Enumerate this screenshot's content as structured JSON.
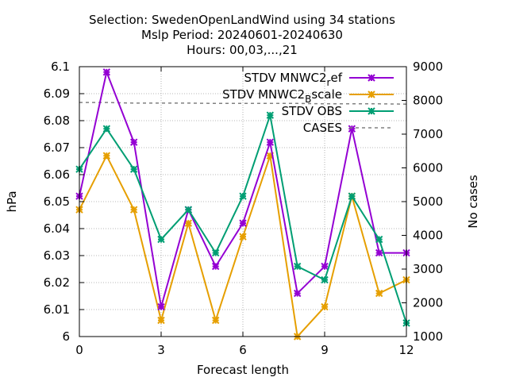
{
  "chart_data": {
    "type": "line",
    "title_lines": [
      "Selection: SwedenOpenLandWind using     34 stations",
      "Mslp   Period: 20240601-20240630",
      "Hours: 00,03,...,21"
    ],
    "xlabel": "Forecast length",
    "ylabel": "hPa",
    "y2label": "No cases",
    "xlim": [
      0,
      12
    ],
    "ylim": [
      6.0,
      6.1
    ],
    "y2lim": [
      1000,
      9000
    ],
    "x_ticks": [
      "0",
      "3",
      "6",
      "9",
      "12"
    ],
    "x_tick_values": [
      0,
      3,
      6,
      9,
      12
    ],
    "y_ticks": [
      "6",
      "6.01",
      "6.02",
      "6.03",
      "6.04",
      "6.05",
      "6.06",
      "6.07",
      "6.08",
      "6.09",
      "6.1"
    ],
    "y_tick_values": [
      6.0,
      6.01,
      6.02,
      6.03,
      6.04,
      6.05,
      6.06,
      6.07,
      6.08,
      6.09,
      6.1
    ],
    "y2_ticks": [
      "1000",
      "2000",
      "3000",
      "4000",
      "5000",
      "6000",
      "7000",
      "8000",
      "9000"
    ],
    "y2_tick_values": [
      1000,
      2000,
      3000,
      4000,
      5000,
      6000,
      7000,
      8000,
      9000
    ],
    "grid": true,
    "legend_position": "top-right",
    "x": [
      0,
      1,
      2,
      3,
      4,
      5,
      6,
      7,
      8,
      9,
      10,
      11,
      12
    ],
    "series": [
      {
        "name": "STDV MNWC2_ref",
        "legend_main": "STDV MNWC2",
        "legend_sub": "r",
        "legend_tail": "ef",
        "color": "#9400d3",
        "axis": "y",
        "marker": true,
        "values": [
          6.052,
          6.098,
          6.072,
          6.011,
          6.047,
          6.026,
          6.042,
          6.072,
          6.016,
          6.026,
          6.077,
          6.031,
          6.031
        ]
      },
      {
        "name": "STDV MNWC2_Bscale",
        "legend_main": "STDV MNWC2",
        "legend_sub": "B",
        "legend_tail": "scale",
        "color": "#e69f00",
        "axis": "y",
        "marker": true,
        "values": [
          6.047,
          6.067,
          6.047,
          6.006,
          6.042,
          6.006,
          6.037,
          6.067,
          6.0,
          6.011,
          6.052,
          6.016,
          6.021
        ]
      },
      {
        "name": "STDV OBS",
        "legend_main": "STDV OBS",
        "legend_sub": "",
        "legend_tail": "",
        "color": "#009e73",
        "axis": "y",
        "marker": true,
        "values": [
          6.062,
          6.077,
          6.062,
          6.036,
          6.047,
          6.031,
          6.052,
          6.082,
          6.026,
          6.021,
          6.052,
          6.036,
          6.005
        ]
      },
      {
        "name": "CASES",
        "legend_main": "CASES",
        "legend_sub": "",
        "legend_tail": "",
        "color": "#808080",
        "axis": "y2",
        "marker": false,
        "dashed": true,
        "values": [
          7940,
          7940,
          7920,
          7920,
          7920,
          7910,
          7910,
          7910,
          7910,
          7900,
          7900,
          7900,
          7890
        ]
      }
    ]
  }
}
